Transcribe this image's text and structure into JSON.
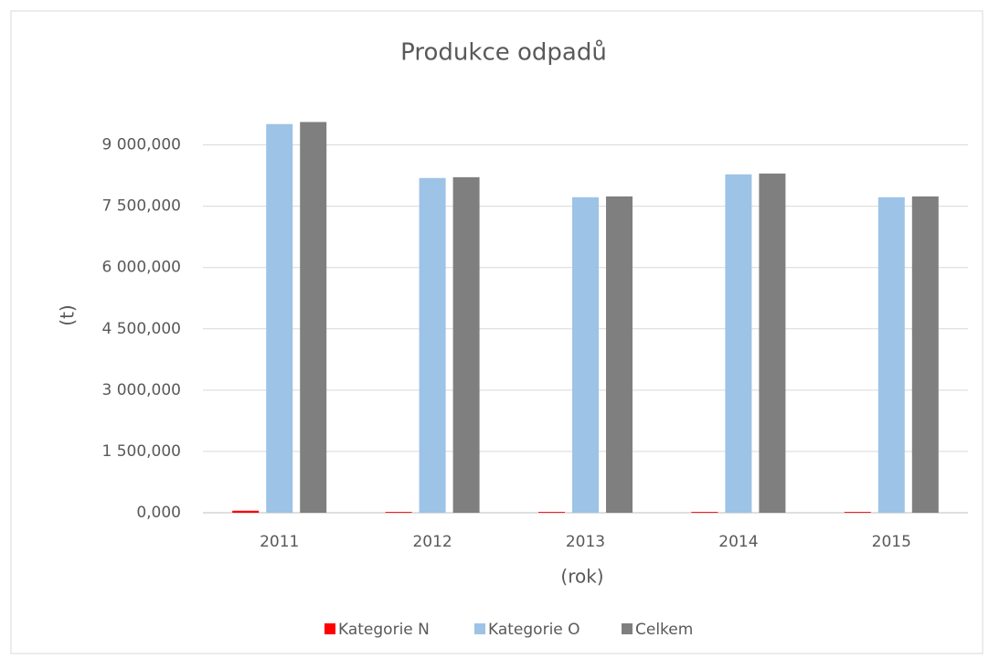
{
  "chart_data": {
    "type": "bar",
    "title": "Produkce odpadů",
    "ylabel": "(t)",
    "xlabel": "(rok)",
    "categories": [
      "2011",
      "2012",
      "2013",
      "2014",
      "2015"
    ],
    "series": [
      {
        "name": "Kategorie N",
        "color": "#ff0000",
        "values": [
          50000,
          20000,
          20000,
          20000,
          20000
        ]
      },
      {
        "name": "Kategorie O",
        "color": "#9dc3e6",
        "values": [
          9510000,
          8190000,
          7720000,
          8280000,
          7720000
        ]
      },
      {
        "name": "Celkem",
        "color": "#7f7f7f",
        "values": [
          9560000,
          8210000,
          7740000,
          8300000,
          7740000
        ]
      }
    ],
    "ylim": [
      0,
      9750000
    ],
    "yticks": [
      {
        "value": 0,
        "label": "0,000"
      },
      {
        "value": 1500000,
        "label": "1 500,000"
      },
      {
        "value": 3000000,
        "label": "3 000,000"
      },
      {
        "value": 4500000,
        "label": "4 500,000"
      },
      {
        "value": 6000000,
        "label": "6 000,000"
      },
      {
        "value": 7500000,
        "label": "7 500,000"
      },
      {
        "value": 9000000,
        "label": "9 000,000"
      }
    ],
    "grid": true,
    "legend": "bottom"
  }
}
